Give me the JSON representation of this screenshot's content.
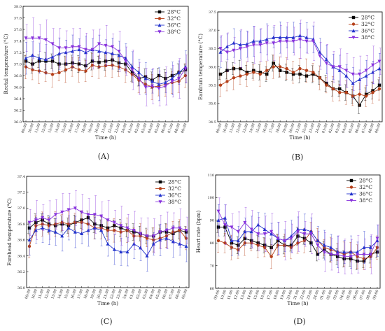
{
  "panels": [
    {
      "label": "(A)",
      "chart_data": {
        "type": "line",
        "xlabel": "Time (h)",
        "ylabel": "Rectal temperature (°C)",
        "ylim": [
          36.0,
          38.0
        ],
        "yticks": [
          36.0,
          36.2,
          36.4,
          36.6,
          36.8,
          37.0,
          37.2,
          37.4,
          37.6,
          37.8,
          38.0
        ],
        "legend_position": "top-right",
        "x": [
          "09:00",
          "10:00",
          "11:00",
          "12:00",
          "13:00",
          "14:00",
          "15:00",
          "16:00",
          "17:00",
          "18:00",
          "19:00",
          "20:00",
          "21:00",
          "22:00",
          "23:00",
          "24:00",
          "01:00",
          "02:00",
          "03:00",
          "04:00",
          "05:00",
          "06:00",
          "07:00",
          "08:00",
          "09:00"
        ],
        "series": [
          {
            "name": "28°C",
            "color": "#000000",
            "marker": "square",
            "values": [
              37.05,
              37.0,
              37.05,
              37.05,
              37.05,
              37.0,
              37.0,
              37.02,
              37.0,
              36.97,
              37.05,
              37.03,
              37.05,
              37.07,
              37.02,
              37.0,
              36.85,
              36.75,
              36.78,
              36.72,
              36.8,
              36.75,
              36.8,
              36.85,
              36.9
            ]
          },
          {
            "name": "32°C",
            "color": "#b5401a",
            "marker": "circle",
            "values": [
              36.95,
              36.9,
              36.88,
              36.85,
              36.82,
              36.85,
              36.9,
              36.95,
              36.9,
              36.88,
              36.98,
              36.95,
              36.97,
              36.98,
              36.95,
              36.9,
              36.82,
              36.72,
              36.65,
              36.6,
              36.62,
              36.65,
              36.68,
              36.7,
              36.8
            ]
          },
          {
            "name": "36°C",
            "color": "#2233cc",
            "marker": "triangle",
            "values": [
              37.1,
              37.15,
              37.1,
              37.08,
              37.12,
              37.18,
              37.2,
              37.22,
              37.25,
              37.2,
              37.25,
              37.22,
              37.2,
              37.18,
              37.15,
              37.1,
              36.95,
              36.85,
              36.75,
              36.7,
              36.65,
              36.68,
              36.75,
              36.85,
              36.95
            ]
          },
          {
            "name": "38°C",
            "color": "#8833dd",
            "marker": "triangle-down",
            "values": [
              37.45,
              37.45,
              37.45,
              37.42,
              37.35,
              37.28,
              37.28,
              37.3,
              37.3,
              37.25,
              37.25,
              37.35,
              37.32,
              37.3,
              37.22,
              37.05,
              36.9,
              36.75,
              36.6,
              36.62,
              36.58,
              36.62,
              36.7,
              36.75,
              36.92
            ]
          }
        ]
      }
    },
    {
      "label": "(B)",
      "chart_data": {
        "type": "line",
        "xlabel": "Time (h)",
        "ylabel": "Eardrum temperature (°C)",
        "ylim": [
          34.5,
          37.5
        ],
        "yticks": [
          34.5,
          35.0,
          35.5,
          36.0,
          36.5,
          37.0,
          37.5
        ],
        "legend_position": "top-right",
        "x": [
          "09:00",
          "10:00",
          "11:00",
          "12:00",
          "13:00",
          "14:00",
          "15:00",
          "16:00",
          "17:00",
          "18:00",
          "19:00",
          "20:00",
          "21:00",
          "22:00",
          "23:00",
          "24:00",
          "01:00",
          "02:00",
          "03:00",
          "04:00",
          "05:00",
          "06:00",
          "07:00",
          "08:00",
          "09:00"
        ],
        "series": [
          {
            "name": "28°C",
            "color": "#000000",
            "marker": "square",
            "values": [
              35.8,
              35.9,
              35.95,
              35.95,
              35.85,
              35.9,
              35.85,
              35.8,
              36.1,
              35.9,
              35.85,
              35.8,
              35.8,
              35.75,
              35.8,
              35.7,
              35.55,
              35.4,
              35.4,
              35.3,
              35.2,
              34.95,
              35.25,
              35.35,
              35.5
            ]
          },
          {
            "name": "32°C",
            "color": "#b5401a",
            "marker": "circle",
            "values": [
              35.5,
              35.6,
              35.7,
              35.75,
              35.8,
              35.85,
              35.8,
              35.9,
              36.0,
              36.0,
              35.95,
              35.85,
              35.95,
              35.9,
              35.85,
              35.7,
              35.5,
              35.4,
              35.3,
              35.3,
              35.2,
              35.25,
              35.2,
              35.3,
              35.4
            ]
          },
          {
            "name": "36°C",
            "color": "#2233cc",
            "marker": "triangle",
            "values": [
              36.4,
              36.55,
              36.65,
              36.6,
              36.62,
              36.7,
              36.7,
              36.75,
              36.8,
              36.8,
              36.8,
              36.8,
              36.85,
              36.8,
              36.75,
              36.4,
              36.2,
              36.0,
              35.9,
              35.75,
              35.55,
              35.65,
              35.75,
              35.85,
              35.95
            ]
          },
          {
            "name": "38°C",
            "color": "#8833dd",
            "marker": "triangle-down",
            "values": [
              36.5,
              36.4,
              36.45,
              36.5,
              36.55,
              36.6,
              36.6,
              36.65,
              36.65,
              36.7,
              36.7,
              36.7,
              36.75,
              36.7,
              36.7,
              36.3,
              36.1,
              36.0,
              36.0,
              35.9,
              35.8,
              35.8,
              35.9,
              36.05,
              36.15
            ]
          }
        ]
      }
    },
    {
      "label": "(C)",
      "chart_data": {
        "type": "line",
        "xlabel": "Time (h)",
        "ylabel": "Forehead temperature (°C)",
        "ylim": [
          36.0,
          37.4
        ],
        "yticks": [
          36.0,
          36.2,
          36.4,
          36.6,
          36.8,
          37.0,
          37.2,
          37.4
        ],
        "legend_position": "top-right",
        "x": [
          "09:00",
          "10:00",
          "11:00",
          "12:00",
          "13:00",
          "14:00",
          "15:00",
          "16:00",
          "17:00",
          "18:00",
          "19:00",
          "20:00",
          "21:00",
          "22:00",
          "23:00",
          "24:00",
          "01:00",
          "02:00",
          "03:00",
          "04:00",
          "05:00",
          "06:00",
          "07:00",
          "08:00",
          "09:00"
        ],
        "series": [
          {
            "name": "28°C",
            "color": "#000000",
            "marker": "square",
            "values": [
              36.75,
              36.82,
              36.85,
              36.8,
              36.78,
              36.8,
              36.78,
              36.82,
              36.85,
              36.88,
              36.8,
              36.78,
              36.75,
              36.78,
              36.75,
              36.72,
              36.7,
              36.68,
              36.65,
              36.65,
              36.7,
              36.7,
              36.68,
              36.72,
              36.7
            ]
          },
          {
            "name": "32°C",
            "color": "#b5401a",
            "marker": "circle",
            "values": [
              36.52,
              36.78,
              36.8,
              36.78,
              36.8,
              36.82,
              36.8,
              36.82,
              36.82,
              36.8,
              36.75,
              36.75,
              36.72,
              36.72,
              36.7,
              36.72,
              36.65,
              36.65,
              36.62,
              36.6,
              36.62,
              36.65,
              36.7,
              36.72,
              36.62
            ]
          },
          {
            "name": "36°C",
            "color": "#2233cc",
            "marker": "triangle",
            "values": [
              36.6,
              36.72,
              36.75,
              36.72,
              36.7,
              36.65,
              36.75,
              36.7,
              36.68,
              36.72,
              36.75,
              36.72,
              36.55,
              36.48,
              36.45,
              36.45,
              36.55,
              36.5,
              36.4,
              36.55,
              36.6,
              36.62,
              36.58,
              36.55,
              36.52
            ]
          },
          {
            "name": "38°C",
            "color": "#8833dd",
            "marker": "triangle-down",
            "values": [
              36.82,
              36.85,
              36.88,
              36.85,
              36.92,
              36.95,
              36.98,
              37.0,
              36.95,
              36.92,
              36.92,
              36.9,
              36.85,
              36.82,
              36.78,
              36.75,
              36.72,
              36.68,
              36.65,
              36.65,
              36.7,
              36.72,
              36.75,
              36.75,
              36.72
            ]
          }
        ]
      }
    },
    {
      "label": "(D)",
      "chart_data": {
        "type": "line",
        "xlabel": "Time (h)",
        "ylabel": "Heart rate (bpm)",
        "ylim": [
          60,
          110
        ],
        "yticks": [
          60,
          70,
          80,
          90,
          100,
          110
        ],
        "legend_position": "top-right",
        "x": [
          "09:00",
          "10:00",
          "11:00",
          "12:00",
          "13:00",
          "14:00",
          "15:00",
          "16:00",
          "17:00",
          "18:00",
          "19:00",
          "20:00",
          "21:00",
          "22:00",
          "23:00",
          "24:00",
          "01:00",
          "02:00",
          "03:00",
          "04:00",
          "05:00",
          "06:00",
          "07:00",
          "08:00",
          "09:00"
        ],
        "series": [
          {
            "name": "28°C",
            "color": "#000000",
            "marker": "square",
            "values": [
              87,
              87,
              80,
              79,
              82,
              81,
              80,
              79,
              78,
              81,
              79,
              79,
              83,
              82,
              80,
              75,
              77,
              75,
              74,
              73,
              73,
              72,
              72,
              75,
              76
            ]
          },
          {
            "name": "32°C",
            "color": "#b5401a",
            "marker": "circle",
            "values": [
              81,
              80,
              78,
              77,
              80,
              80,
              79,
              78,
              74,
              79,
              79,
              78,
              80,
              81,
              85,
              81,
              78,
              77,
              76,
              75,
              76,
              74,
              73,
              74,
              78
            ]
          },
          {
            "name": "36°C",
            "color": "#2233cc",
            "marker": "triangle",
            "values": [
              90,
              91,
              81,
              81,
              85,
              85,
              88,
              86,
              84,
              82,
              81,
              83,
              86,
              86,
              85,
              81,
              79,
              78,
              76,
              76,
              76,
              76,
              78,
              78,
              81
            ]
          },
          {
            "name": "38°C",
            "color": "#8833dd",
            "marker": "triangle-down",
            "values": [
              94,
              88,
              87,
              85,
              89,
              86,
              84,
              84,
              85,
              82,
              81,
              82,
              85,
              84,
              84,
              79,
              76,
              75,
              75,
              74,
              74,
              75,
              75,
              75,
              82
            ]
          }
        ]
      }
    }
  ]
}
